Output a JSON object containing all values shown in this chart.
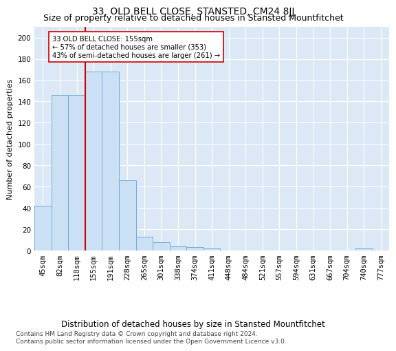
{
  "title": "33, OLD BELL CLOSE, STANSTED, CM24 8JJ",
  "subtitle": "Size of property relative to detached houses in Stansted Mountfitchet",
  "xlabel": "Distribution of detached houses by size in Stansted Mountfitchet",
  "ylabel": "Number of detached properties",
  "categories": [
    "45sqm",
    "82sqm",
    "118sqm",
    "155sqm",
    "191sqm",
    "228sqm",
    "265sqm",
    "301sqm",
    "338sqm",
    "374sqm",
    "411sqm",
    "448sqm",
    "484sqm",
    "521sqm",
    "557sqm",
    "594sqm",
    "631sqm",
    "667sqm",
    "704sqm",
    "740sqm",
    "777sqm"
  ],
  "values": [
    42,
    146,
    146,
    168,
    168,
    66,
    13,
    8,
    4,
    3,
    2,
    0,
    0,
    0,
    0,
    0,
    0,
    0,
    0,
    2,
    0
  ],
  "bar_color": "#cce0f5",
  "bar_edge_color": "#6aaed6",
  "vline_color": "#cc0000",
  "annotation_text": "33 OLD BELL CLOSE: 155sqm\n← 57% of detached houses are smaller (353)\n43% of semi-detached houses are larger (261) →",
  "ylim": [
    0,
    210
  ],
  "yticks": [
    0,
    20,
    40,
    60,
    80,
    100,
    120,
    140,
    160,
    180,
    200
  ],
  "background_color": "#dce8f5",
  "footer": "Contains HM Land Registry data © Crown copyright and database right 2024.\nContains public sector information licensed under the Open Government Licence v3.0.",
  "title_fontsize": 10,
  "subtitle_fontsize": 9,
  "xlabel_fontsize": 8.5,
  "ylabel_fontsize": 8,
  "tick_fontsize": 7.5,
  "footer_fontsize": 6.5
}
